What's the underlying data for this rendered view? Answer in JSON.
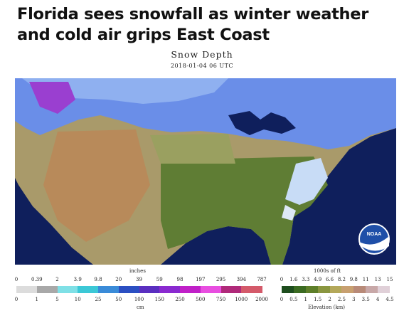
{
  "article": {
    "headline_line1": "Florida sees snowfall as winter weather",
    "headline_line2": "and cold air grips East Coast"
  },
  "map": {
    "title": "Snow Depth",
    "timestamp": "2018-01-04 06 UTC",
    "logo_text": "NOAA",
    "ocean_color": "#0f1f5c",
    "snow_color": "#6a8ee8",
    "land_color": "#a99a6a"
  },
  "snow_legend": {
    "unit_top": "inches",
    "unit_bottom": "cm",
    "inches_labels": [
      "0",
      "0.39",
      "2",
      "3.9",
      "9.8",
      "20",
      "39",
      "59",
      "98",
      "197",
      "295",
      "394",
      "787"
    ],
    "cm_labels": [
      "0",
      "1",
      "5",
      "10",
      "25",
      "50",
      "100",
      "150",
      "250",
      "500",
      "750",
      "1000",
      "2000"
    ],
    "colors": [
      "#dcdcdc",
      "#a8a8a8",
      "#7fe0e6",
      "#3cc8d6",
      "#3a8bd8",
      "#2b4fc2",
      "#5a2fc0",
      "#8a2ad0",
      "#c020c8",
      "#e84ee0",
      "#b02a7a",
      "#d45a6a"
    ]
  },
  "elevation_legend": {
    "unit_top": "1000s of ft",
    "unit_bottom": "Elevation (km)",
    "ft_labels": [
      "0",
      "1.6",
      "3.3",
      "4.9",
      "6.6",
      "8.2",
      "9.8",
      "11",
      "13",
      "15"
    ],
    "km_labels": [
      "0",
      "0.5",
      "1",
      "1.5",
      "2",
      "2.5",
      "3",
      "3.5",
      "4",
      "4.5"
    ],
    "colors": [
      "#1e4d1e",
      "#3b6b22",
      "#5e7f2a",
      "#8a9640",
      "#b4a85a",
      "#c8a070",
      "#b88a78",
      "#c8a8a8",
      "#e0d0d8"
    ]
  }
}
